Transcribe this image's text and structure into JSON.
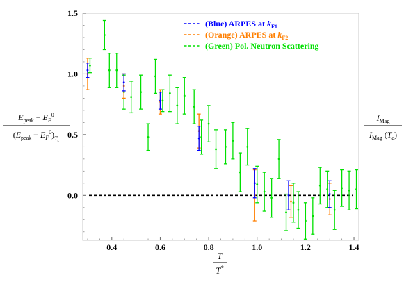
{
  "chart_data": {
    "type": "scatter",
    "title": "",
    "xlabel": {
      "numerator": "T",
      "denominator": "T*"
    },
    "ylabel_left": {
      "numerator": "E_peak − E_F^0",
      "denominator": "(E_peak − E_F^0)_Tc"
    },
    "ylabel_right": {
      "numerator": "I_Mag",
      "denominator": "I_Mag (T_c)"
    },
    "xlim": [
      0.28,
      1.42
    ],
    "ylim": [
      -0.37,
      1.5
    ],
    "x_ticks": [
      0.4,
      0.6,
      0.8,
      1.0,
      1.2,
      1.4
    ],
    "x_tick_labels": [
      "0.4",
      "0.6",
      "0.8",
      "1.0",
      "1.2",
      "1.4"
    ],
    "y_ticks": [
      0.0,
      0.5,
      1.0,
      1.5
    ],
    "y_tick_labels": [
      "0.0",
      "0.5",
      "1.0",
      "1.5"
    ],
    "zero_line": true,
    "grid": false,
    "legend_placement": "top-right",
    "series": [
      {
        "name": "(Blue) ARPES at k_F1",
        "color": "#0000ff",
        "points": [
          {
            "x": 0.3,
            "y": 1.03,
            "err": 0.06
          },
          {
            "x": 0.45,
            "y": 0.93,
            "err": 0.07
          },
          {
            "x": 0.6,
            "y": 0.78,
            "err": 0.07
          },
          {
            "x": 0.76,
            "y": 0.47,
            "err": 0.1
          },
          {
            "x": 0.99,
            "y": 0.1,
            "err": 0.12
          },
          {
            "x": 1.13,
            "y": 0.0,
            "err": 0.12
          },
          {
            "x": 1.3,
            "y": 0.01,
            "err": 0.11
          }
        ]
      },
      {
        "name": "(Orange) ARPES at k_F2",
        "color": "#ff7f00",
        "points": [
          {
            "x": 0.3,
            "y": 1.0,
            "err": 0.13
          },
          {
            "x": 0.45,
            "y": 0.9,
            "err": 0.1
          },
          {
            "x": 0.6,
            "y": 0.77,
            "err": 0.1
          },
          {
            "x": 0.76,
            "y": 0.53,
            "err": 0.14
          },
          {
            "x": 0.99,
            "y": 0.0,
            "err": 0.21
          },
          {
            "x": 1.14,
            "y": -0.05,
            "err": 0.13
          },
          {
            "x": 1.3,
            "y": -0.03,
            "err": 0.13
          }
        ]
      },
      {
        "name": "(Green) Pol. Neutron Scattering",
        "color": "#00e000",
        "points": [
          {
            "x": 0.31,
            "y": 1.07,
            "err": 0.06
          },
          {
            "x": 0.37,
            "y": 1.32,
            "err": 0.12
          },
          {
            "x": 0.39,
            "y": 1.03,
            "err": 0.14
          },
          {
            "x": 0.42,
            "y": 1.03,
            "err": 0.14
          },
          {
            "x": 0.45,
            "y": 0.85,
            "err": 0.14
          },
          {
            "x": 0.48,
            "y": 0.81,
            "err": 0.13
          },
          {
            "x": 0.52,
            "y": 0.85,
            "err": 0.14
          },
          {
            "x": 0.55,
            "y": 0.48,
            "err": 0.11
          },
          {
            "x": 0.58,
            "y": 0.98,
            "err": 0.14
          },
          {
            "x": 0.61,
            "y": 0.78,
            "err": 0.09
          },
          {
            "x": 0.64,
            "y": 0.84,
            "err": 0.15
          },
          {
            "x": 0.67,
            "y": 0.74,
            "err": 0.15
          },
          {
            "x": 0.7,
            "y": 0.82,
            "err": 0.15
          },
          {
            "x": 0.74,
            "y": 0.73,
            "err": 0.14
          },
          {
            "x": 0.77,
            "y": 0.48,
            "err": 0.14
          },
          {
            "x": 0.8,
            "y": 0.59,
            "err": 0.15
          },
          {
            "x": 0.83,
            "y": 0.38,
            "err": 0.16
          },
          {
            "x": 0.87,
            "y": 0.4,
            "err": 0.14
          },
          {
            "x": 0.9,
            "y": 0.45,
            "err": 0.15
          },
          {
            "x": 0.93,
            "y": 0.19,
            "err": 0.16
          },
          {
            "x": 0.96,
            "y": 0.4,
            "err": 0.15
          },
          {
            "x": 1.0,
            "y": 0.09,
            "err": 0.15
          },
          {
            "x": 1.03,
            "y": 0.03,
            "err": 0.16
          },
          {
            "x": 1.06,
            "y": -0.02,
            "err": 0.16
          },
          {
            "x": 1.09,
            "y": 0.3,
            "err": 0.16
          },
          {
            "x": 1.12,
            "y": -0.14,
            "err": 0.15
          },
          {
            "x": 1.15,
            "y": -0.06,
            "err": 0.16
          },
          {
            "x": 1.17,
            "y": -0.12,
            "err": 0.15
          },
          {
            "x": 1.2,
            "y": -0.21,
            "err": 0.15
          },
          {
            "x": 1.23,
            "y": -0.17,
            "err": 0.15
          },
          {
            "x": 1.26,
            "y": 0.08,
            "err": 0.15
          },
          {
            "x": 1.29,
            "y": 0.05,
            "err": 0.15
          },
          {
            "x": 1.32,
            "y": -0.12,
            "err": 0.16
          },
          {
            "x": 1.35,
            "y": 0.06,
            "err": 0.15
          },
          {
            "x": 1.38,
            "y": 0.04,
            "err": 0.16
          },
          {
            "x": 1.41,
            "y": 0.05,
            "err": 0.16
          }
        ]
      }
    ]
  }
}
